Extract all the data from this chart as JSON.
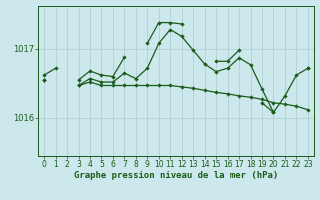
{
  "background_color": "#cde8ec",
  "grid_color": "#aaccd0",
  "line_color": "#1a5c1a",
  "x_values": [
    0,
    1,
    2,
    3,
    4,
    5,
    6,
    7,
    8,
    9,
    10,
    11,
    12,
    13,
    14,
    15,
    16,
    17,
    18,
    19,
    20,
    21,
    22,
    23
  ],
  "line1_y": [
    1016.62,
    1016.72,
    null,
    1016.55,
    1016.68,
    1016.62,
    1016.6,
    1016.88,
    null,
    1017.08,
    1017.38,
    1017.38,
    1017.36,
    null,
    null,
    1016.82,
    1016.82,
    1016.98,
    null,
    1016.22,
    1016.08,
    null,
    null,
    1016.72
  ],
  "line2_y": [
    1016.55,
    null,
    null,
    1016.47,
    1016.57,
    1016.52,
    1016.52,
    1016.65,
    1016.57,
    1016.72,
    1017.08,
    1017.28,
    1017.18,
    1016.98,
    1016.78,
    1016.67,
    1016.72,
    1016.87,
    1016.77,
    1016.42,
    1016.08,
    1016.32,
    1016.62,
    1016.72
  ],
  "line3_y": [
    1016.55,
    null,
    null,
    1016.47,
    1016.52,
    1016.47,
    1016.47,
    1016.47,
    1016.47,
    1016.47,
    1016.47,
    1016.47,
    1016.45,
    1016.43,
    1016.4,
    1016.37,
    1016.35,
    1016.32,
    1016.3,
    1016.27,
    1016.22,
    1016.2,
    1016.17,
    1016.12
  ],
  "ylim": [
    1015.45,
    1017.62
  ],
  "yticks": [
    1016,
    1017
  ],
  "xlim": [
    -0.5,
    23.5
  ],
  "xlabel": "Graphe pression niveau de la mer (hPa)",
  "xlabel_fontsize": 6.5,
  "tick_fontsize": 5.5
}
